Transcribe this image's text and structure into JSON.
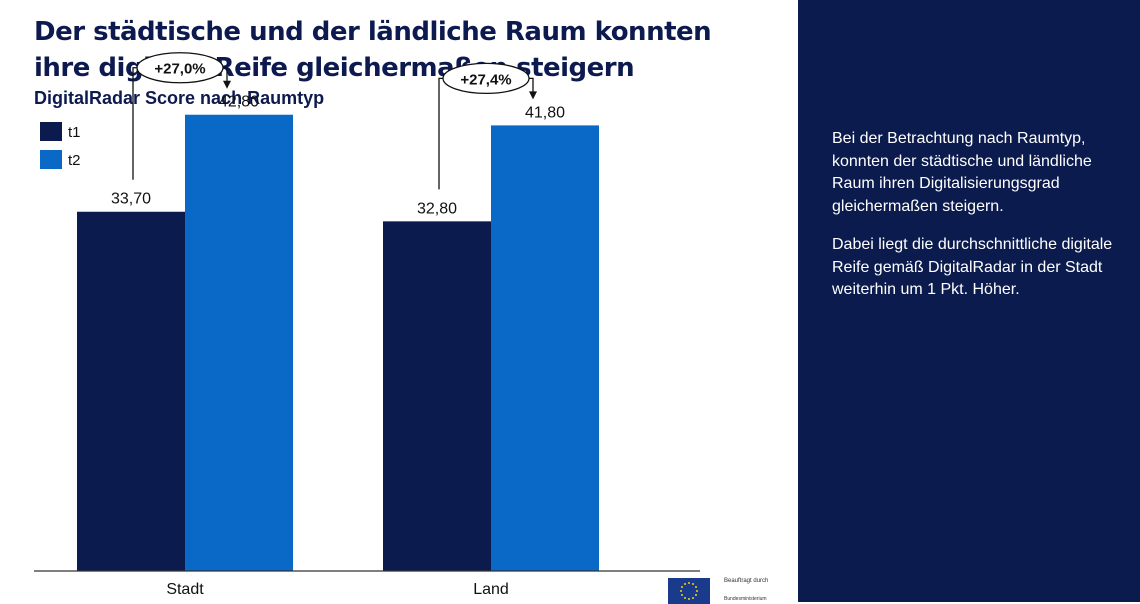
{
  "colors": {
    "t1": "#0c1b4d",
    "t2": "#0a69c6",
    "title": "#0d1a4f",
    "panel": "#0c1b4d"
  },
  "chart_data": {
    "type": "bar",
    "title": "Der städtische und der ländliche Raum konnten ihre digitale Reife gleichermaßen steigern",
    "subtitle": "DigitalRadar Score nach Raumtyp",
    "categories": [
      "Stadt",
      "Land"
    ],
    "series": [
      {
        "name": "t1",
        "values": [
          33.7,
          32.8
        ],
        "labels": [
          "33,70",
          "32,80"
        ]
      },
      {
        "name": "t2",
        "values": [
          42.8,
          41.8
        ],
        "labels": [
          "42,80",
          "41,80"
        ]
      }
    ],
    "changes": [
      "+27,0%",
      "+27,4%"
    ],
    "ylim": [
      0,
      53
    ],
    "legend_position": "top-left",
    "grid": false
  },
  "side_panel": {
    "paragraph1": "Bei der Betrachtung nach Raumtyp, konnten der städtische und ländliche Raum ihren Digitalisierungsgrad gleichermaßen steigern.",
    "paragraph2": "Dabei liegt die durchschnittliche digitale Reife gemäß DigitalRadar in der Stadt weiterhin um 1 Pkt. Höher."
  },
  "footer": {
    "commissioned_label": "Beauftragt durch",
    "ministry_label": "Bundesministerium"
  }
}
